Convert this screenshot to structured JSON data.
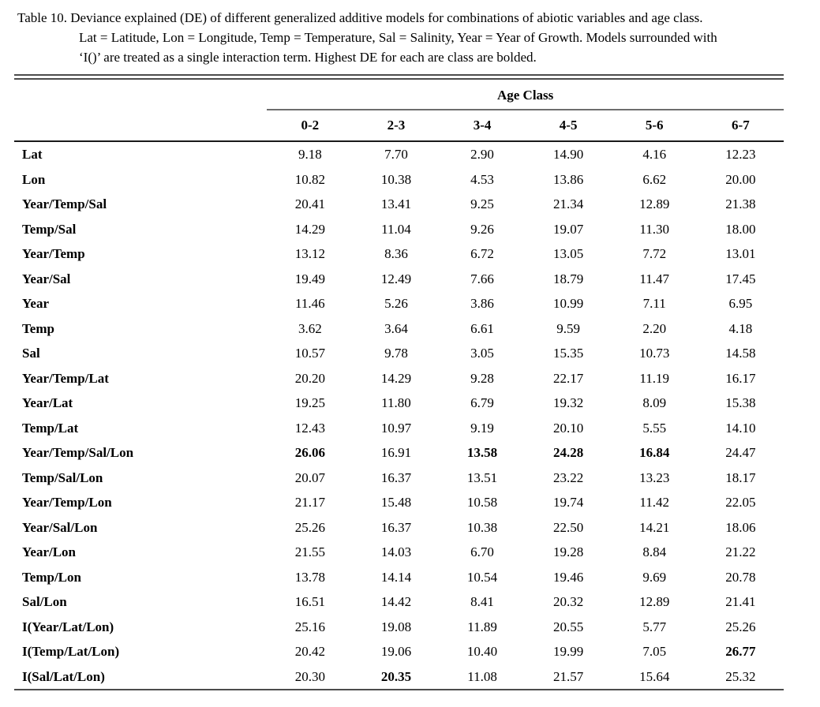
{
  "caption": {
    "label": "Table 10.",
    "lines": [
      "Deviance explained (DE) of different generalized additive models for combinations of abiotic variables and age class.",
      "Lat = Latitude, Lon = Longitude, Temp = Temperature, Sal = Salinity, Year = Year of Growth. Models surrounded with",
      "‘I()’ are treated as a single interaction term. Highest DE for each are class are bolded."
    ]
  },
  "table": {
    "spanner": "Age Class",
    "columns": [
      "0-2",
      "2-3",
      "3-4",
      "4-5",
      "5-6",
      "6-7"
    ],
    "rows": [
      {
        "model": "Lat",
        "values": [
          "9.18",
          "7.70",
          "2.90",
          "14.90",
          "4.16",
          "12.23"
        ],
        "bold": []
      },
      {
        "model": "Lon",
        "values": [
          "10.82",
          "10.38",
          "4.53",
          "13.86",
          "6.62",
          "20.00"
        ],
        "bold": []
      },
      {
        "model": "Year/Temp/Sal",
        "values": [
          "20.41",
          "13.41",
          "9.25",
          "21.34",
          "12.89",
          "21.38"
        ],
        "bold": []
      },
      {
        "model": "Temp/Sal",
        "values": [
          "14.29",
          "11.04",
          "9.26",
          "19.07",
          "11.30",
          "18.00"
        ],
        "bold": []
      },
      {
        "model": "Year/Temp",
        "values": [
          "13.12",
          "8.36",
          "6.72",
          "13.05",
          "7.72",
          "13.01"
        ],
        "bold": []
      },
      {
        "model": "Year/Sal",
        "values": [
          "19.49",
          "12.49",
          "7.66",
          "18.79",
          "11.47",
          "17.45"
        ],
        "bold": []
      },
      {
        "model": "Year",
        "values": [
          "11.46",
          "5.26",
          "3.86",
          "10.99",
          "7.11",
          "6.95"
        ],
        "bold": []
      },
      {
        "model": "Temp",
        "values": [
          "3.62",
          "3.64",
          "6.61",
          "9.59",
          "2.20",
          "4.18"
        ],
        "bold": []
      },
      {
        "model": "Sal",
        "values": [
          "10.57",
          "9.78",
          "3.05",
          "15.35",
          "10.73",
          "14.58"
        ],
        "bold": []
      },
      {
        "model": "Year/Temp/Lat",
        "values": [
          "20.20",
          "14.29",
          "9.28",
          "22.17",
          "11.19",
          "16.17"
        ],
        "bold": []
      },
      {
        "model": "Year/Lat",
        "values": [
          "19.25",
          "11.80",
          "6.79",
          "19.32",
          "8.09",
          "15.38"
        ],
        "bold": []
      },
      {
        "model": "Temp/Lat",
        "values": [
          "12.43",
          "10.97",
          "9.19",
          "20.10",
          "5.55",
          "14.10"
        ],
        "bold": []
      },
      {
        "model": "Year/Temp/Sal/Lon",
        "values": [
          "26.06",
          "16.91",
          "13.58",
          "24.28",
          "16.84",
          "24.47"
        ],
        "bold": [
          0,
          2,
          3,
          4
        ]
      },
      {
        "model": "Temp/Sal/Lon",
        "values": [
          "20.07",
          "16.37",
          "13.51",
          "23.22",
          "13.23",
          "18.17"
        ],
        "bold": []
      },
      {
        "model": "Year/Temp/Lon",
        "values": [
          "21.17",
          "15.48",
          "10.58",
          "19.74",
          "11.42",
          "22.05"
        ],
        "bold": []
      },
      {
        "model": "Year/Sal/Lon",
        "values": [
          "25.26",
          "16.37",
          "10.38",
          "22.50",
          "14.21",
          "18.06"
        ],
        "bold": []
      },
      {
        "model": "Year/Lon",
        "values": [
          "21.55",
          "14.03",
          "6.70",
          "19.28",
          "8.84",
          "21.22"
        ],
        "bold": []
      },
      {
        "model": "Temp/Lon",
        "values": [
          "13.78",
          "14.14",
          "10.54",
          "19.46",
          "9.69",
          "20.78"
        ],
        "bold": []
      },
      {
        "model": "Sal/Lon",
        "values": [
          "16.51",
          "14.42",
          "8.41",
          "20.32",
          "12.89",
          "21.41"
        ],
        "bold": []
      },
      {
        "model": "I(Year/Lat/Lon)",
        "values": [
          "25.16",
          "19.08",
          "11.89",
          "20.55",
          "5.77",
          "25.26"
        ],
        "bold": []
      },
      {
        "model": "I(Temp/Lat/Lon)",
        "values": [
          "20.42",
          "19.06",
          "10.40",
          "19.99",
          "7.05",
          "26.77"
        ],
        "bold": [
          5
        ]
      },
      {
        "model": "I(Sal/Lat/Lon)",
        "values": [
          "20.30",
          "20.35",
          "11.08",
          "21.57",
          "15.64",
          "25.32"
        ],
        "bold": [
          1
        ]
      }
    ]
  },
  "colors": {
    "text": "#000000",
    "heavy_rule": "#1a1a1a",
    "light_rule": "#4c4c4c"
  }
}
